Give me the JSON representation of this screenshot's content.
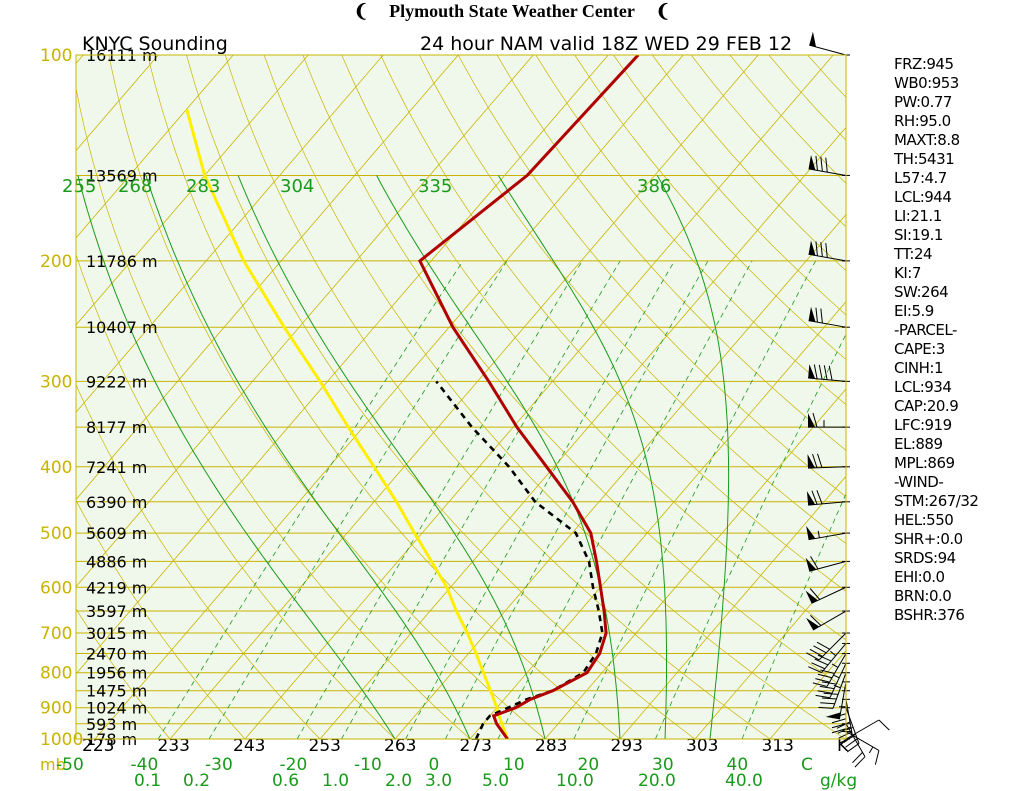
{
  "banner": {
    "title": "Plymouth State Weather Center",
    "flag_left": "❨",
    "flag_right": "❨"
  },
  "chart_data": {
    "type": "line",
    "title": "KNYC Sounding",
    "subtitle": "24 hour NAM valid 18Z WED 29 FEB 12",
    "pressure_ticks": [
      {
        "p": 100,
        "label": "100",
        "height": "16111 m"
      },
      {
        "p": 150,
        "label": "",
        "height": "13569 m"
      },
      {
        "p": 200,
        "label": "200",
        "height": "11786 m"
      },
      {
        "p": 250,
        "label": "",
        "height": "10407 m"
      },
      {
        "p": 300,
        "label": "300",
        "height": "9222 m"
      },
      {
        "p": 350,
        "label": "",
        "height": "8177 m"
      },
      {
        "p": 400,
        "label": "400",
        "height": "7241 m"
      },
      {
        "p": 450,
        "label": "",
        "height": "6390 m"
      },
      {
        "p": 500,
        "label": "500",
        "height": "5609 m"
      },
      {
        "p": 550,
        "label": "",
        "height": "4886 m"
      },
      {
        "p": 600,
        "label": "600",
        "height": "4219 m"
      },
      {
        "p": 650,
        "label": "",
        "height": "3597 m"
      },
      {
        "p": 700,
        "label": "700",
        "height": "3015 m"
      },
      {
        "p": 750,
        "label": "",
        "height": "2470 m"
      },
      {
        "p": 800,
        "label": "800",
        "height": "1956 m"
      },
      {
        "p": 850,
        "label": "",
        "height": "1475 m"
      },
      {
        "p": 900,
        "label": "900",
        "height": "1024 m"
      },
      {
        "p": 950,
        "label": "",
        "height": "593 m"
      },
      {
        "p": 1000,
        "label": "1000",
        "height": "178 m"
      }
    ],
    "temp_ticks": [
      -50,
      -40,
      -30,
      -20,
      -10,
      0,
      10,
      20,
      30,
      40,
      "C"
    ],
    "kelvin_ticks": [
      "223",
      "233",
      "243",
      "253",
      "263",
      "273",
      "283",
      "293",
      "303",
      "313",
      "K"
    ],
    "mixing_ratio_ticks": [
      "0.1",
      "0.2",
      "0.6",
      "1.0",
      "2.0",
      "3.0",
      "5.0",
      "10.0",
      "20.0",
      "40.0",
      "g/kg"
    ],
    "theta_labels": [
      "255",
      "268",
      "283",
      "304",
      "335",
      "386"
    ],
    "pressure_unit": "mb",
    "temperature": [
      {
        "p": 1000,
        "t": 5.0
      },
      {
        "p": 950,
        "t": 1.8
      },
      {
        "p": 925,
        "t": 0.5
      },
      {
        "p": 900,
        "t": 2.5
      },
      {
        "p": 875,
        "t": 3.5
      },
      {
        "p": 850,
        "t": 5.5
      },
      {
        "p": 800,
        "t": 8.0
      },
      {
        "p": 750,
        "t": 7.5
      },
      {
        "p": 700,
        "t": 6.0
      },
      {
        "p": 650,
        "t": 3.2
      },
      {
        "p": 600,
        "t": 0.0
      },
      {
        "p": 550,
        "t": -3.5
      },
      {
        "p": 500,
        "t": -7.5
      },
      {
        "p": 450,
        "t": -13.5
      },
      {
        "p": 400,
        "t": -21.0
      },
      {
        "p": 350,
        "t": -29.5
      },
      {
        "p": 300,
        "t": -38.5
      },
      {
        "p": 250,
        "t": -49.5
      },
      {
        "p": 200,
        "t": -61.5
      },
      {
        "p": 150,
        "t": -57.0
      },
      {
        "p": 100,
        "t": -56.0
      }
    ],
    "dewpoint": [
      {
        "p": 1000,
        "t": 0.8
      },
      {
        "p": 950,
        "t": 0.0
      },
      {
        "p": 925,
        "t": 0.0
      },
      {
        "p": 900,
        "t": 1.5
      },
      {
        "p": 875,
        "t": 3.0
      },
      {
        "p": 850,
        "t": 5.5
      },
      {
        "p": 800,
        "t": 7.5
      },
      {
        "p": 750,
        "t": 7.0
      },
      {
        "p": 700,
        "t": 5.5
      },
      {
        "p": 650,
        "t": 2.5
      },
      {
        "p": 600,
        "t": -1.0
      },
      {
        "p": 550,
        "t": -4.5
      },
      {
        "p": 500,
        "t": -9.5
      },
      {
        "p": 450,
        "t": -18.5
      },
      {
        "p": 400,
        "t": -26.0
      },
      {
        "p": 350,
        "t": -35.5
      },
      {
        "p": 300,
        "t": -45.5
      }
    ],
    "parcel": [
      {
        "p": 1000,
        "t": 5.0
      },
      {
        "p": 950,
        "t": 2.5
      },
      {
        "p": 925,
        "t": 1.2
      },
      {
        "p": 900,
        "t": 0.0
      },
      {
        "p": 850,
        "t": -2.8
      },
      {
        "p": 800,
        "t": -5.8
      },
      {
        "p": 750,
        "t": -9.0
      },
      {
        "p": 700,
        "t": -12.5
      },
      {
        "p": 650,
        "t": -16.5
      },
      {
        "p": 600,
        "t": -20.5
      },
      {
        "p": 550,
        "t": -25.5
      },
      {
        "p": 500,
        "t": -31.0
      },
      {
        "p": 450,
        "t": -37.0
      },
      {
        "p": 400,
        "t": -44.0
      },
      {
        "p": 350,
        "t": -52.0
      },
      {
        "p": 300,
        "t": -61.0
      },
      {
        "p": 250,
        "t": -72.0
      },
      {
        "p": 200,
        "t": -85.0
      },
      {
        "p": 150,
        "t": -100.0
      },
      {
        "p": 120,
        "t": -110.0
      }
    ],
    "winds": [
      {
        "p": 1000,
        "dir": 60,
        "spd": 10
      },
      {
        "p": 975,
        "dir": 120,
        "spd": 15
      },
      {
        "p": 950,
        "dir": 150,
        "spd": 20
      },
      {
        "p": 900,
        "dir": 160,
        "spd": 35
      },
      {
        "p": 875,
        "dir": 170,
        "spd": 40
      },
      {
        "p": 850,
        "dir": 180,
        "spd": 45
      },
      {
        "p": 825,
        "dir": 190,
        "spd": 50
      },
      {
        "p": 800,
        "dir": 200,
        "spd": 45
      },
      {
        "p": 775,
        "dir": 205,
        "spd": 45
      },
      {
        "p": 750,
        "dir": 210,
        "spd": 45
      },
      {
        "p": 725,
        "dir": 220,
        "spd": 45
      },
      {
        "p": 700,
        "dir": 225,
        "spd": 40
      },
      {
        "p": 650,
        "dir": 240,
        "spd": 60
      },
      {
        "p": 600,
        "dir": 245,
        "spd": 60
      },
      {
        "p": 550,
        "dir": 255,
        "spd": 60
      },
      {
        "p": 500,
        "dir": 260,
        "spd": 55
      },
      {
        "p": 450,
        "dir": 265,
        "spd": 70
      },
      {
        "p": 400,
        "dir": 268,
        "spd": 70
      },
      {
        "p": 350,
        "dir": 270,
        "spd": 65
      },
      {
        "p": 300,
        "dir": 275,
        "spd": 90
      },
      {
        "p": 250,
        "dir": 280,
        "spd": 70
      },
      {
        "p": 200,
        "dir": 280,
        "spd": 80
      },
      {
        "p": 150,
        "dir": 280,
        "spd": 80
      },
      {
        "p": 100,
        "dir": 285,
        "spd": 50
      }
    ],
    "colors": {
      "background": "#f0f8ec",
      "isobar": "#c8b400",
      "isotherm": "#c8b400",
      "dry_adiabat": "#c8b400",
      "moist_adiabat": "#1a9a1a",
      "mixing_ratio": "#1a9a1a",
      "temperature": "#b00000",
      "dewpoint": "#000000",
      "parcel": "#ffee00",
      "pressure_label": "#c8b400",
      "temp_label": "#1a9a1a",
      "kelvin_label": "#000000"
    }
  },
  "stats": [
    "FRZ:945",
    "WB0:953",
    "PW:0.77",
    "RH:95.0",
    "MAXT:8.8",
    "TH:5431",
    "L57:4.7",
    "LCL:944",
    "LI:21.1",
    "SI:19.1",
    "TT:24",
    "KI:7",
    "SW:264",
    "EI:5.9",
    "-PARCEL-",
    "CAPE:3",
    "CINH:1",
    "LCL:934",
    "CAP:20.9",
    "LFC:919",
    "EL:889",
    "MPL:869",
    "-WIND-",
    "STM:267/32",
    "HEL:550",
    "SHR+:0.0",
    "SRDS:94",
    "EHI:0.0",
    "BRN:0.0",
    "BSHR:376"
  ]
}
